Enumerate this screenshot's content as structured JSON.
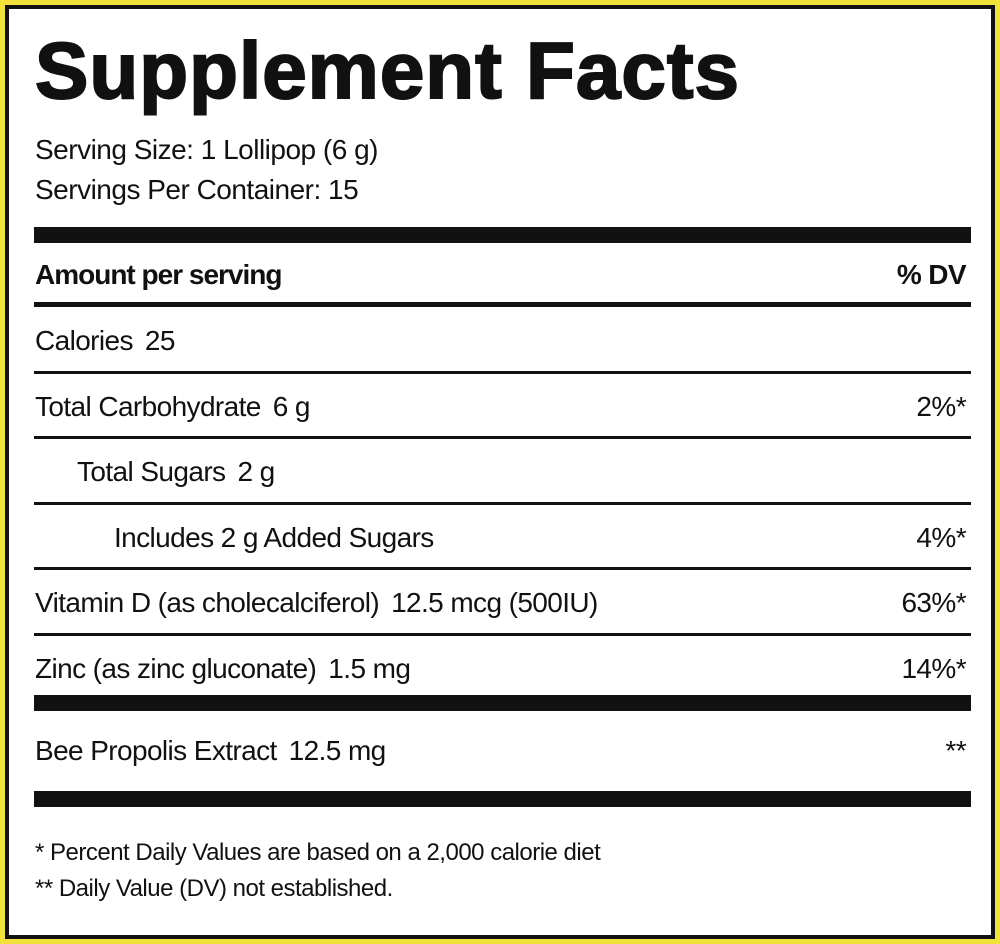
{
  "header": {
    "title": "Supplement Facts",
    "serving_size": "Serving Size: 1 Lollipop (6 g)",
    "servings_per_container": "Servings Per Container:  15"
  },
  "table": {
    "heading": "Amount per serving",
    "dv_heading": "% DV",
    "rows": [
      {
        "label": "Calories",
        "amount": "25"
      },
      {
        "label": "Total Carbohydrate",
        "amount": "6 g",
        "dv": "2%*"
      },
      {
        "label": "Total Sugars",
        "amount": "2 g"
      },
      {
        "label": "Includes 2 g Added Sugars",
        "dv": "4%*"
      },
      {
        "label": "Vitamin D (as cholecalciferol)",
        "amount": "12.5 mcg (500IU)",
        "dv": "63%*"
      },
      {
        "label": "Zinc (as zinc gluconate)",
        "amount": "1.5 mg",
        "dv": "14%*"
      },
      {
        "label": "Bee Propolis Extract",
        "amount": "12.5 mg",
        "dv": "**"
      }
    ]
  },
  "footnotes": [
    "* Percent Daily Values are based on a 2,000 calorie diet",
    "** Daily Value (DV) not established."
  ]
}
